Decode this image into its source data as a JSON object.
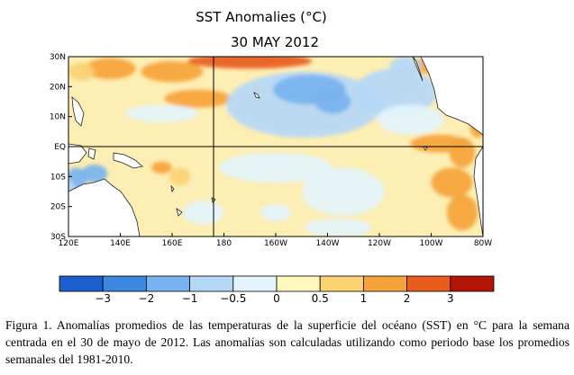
{
  "chart_data": {
    "type": "heatmap",
    "title": "SST Anomalies (°C)",
    "subtitle": "30 MAY 2012",
    "xlabel": "",
    "ylabel": "",
    "x_range_lon_east": [
      120,
      280
    ],
    "y_range_lat": [
      -30,
      30
    ],
    "x_ticks": [
      {
        "lon": 120,
        "label": "120E"
      },
      {
        "lon": 140,
        "label": "140E"
      },
      {
        "lon": 160,
        "label": "160E"
      },
      {
        "lon": 180,
        "label": "180"
      },
      {
        "lon": 200,
        "label": "160W"
      },
      {
        "lon": 220,
        "label": "140W"
      },
      {
        "lon": 240,
        "label": "120W"
      },
      {
        "lon": 260,
        "label": "100W"
      },
      {
        "lon": 280,
        "label": "80W"
      }
    ],
    "y_ticks": [
      {
        "lat": 30,
        "label": "30N"
      },
      {
        "lat": 20,
        "label": "20N"
      },
      {
        "lat": 10,
        "label": "10N"
      },
      {
        "lat": 0,
        "label": "EQ"
      },
      {
        "lat": -10,
        "label": "10S"
      },
      {
        "lat": -20,
        "label": "20S"
      },
      {
        "lat": -30,
        "label": "30S"
      }
    ],
    "reference_lines": {
      "equator_lat": 0,
      "dateline_lon": 180
    },
    "colorbar": {
      "boundaries": [
        -3,
        -2,
        -1,
        -0.5,
        0,
        0.5,
        1,
        2,
        3
      ],
      "labels": [
        "−3",
        "−2",
        "−1",
        "−0.5",
        "0",
        "0.5",
        "1",
        "2",
        "3"
      ],
      "colors": [
        "#1a5fcd",
        "#3a86e0",
        "#78b3ef",
        "#b5d8f7",
        "#e4f4fb",
        "#fff7bd",
        "#fbd373",
        "#f6a33b",
        "#e85c1d",
        "#b21508"
      ]
    },
    "ocean_base_color": "#fdeeb3",
    "land_color": "#ffffff",
    "anomaly_regions": [
      {
        "lon": 136,
        "lat": 26,
        "rx": 10,
        "ry": 3.5,
        "value": 1.2
      },
      {
        "lon": 160,
        "lat": 25,
        "rx": 12,
        "ry": 3.5,
        "value": 1.4
      },
      {
        "lon": 190,
        "lat": 28.5,
        "rx": 24,
        "ry": 2.5,
        "value": 2.0
      },
      {
        "lon": 262,
        "lat": 27,
        "rx": 9,
        "ry": 3,
        "value": 1.5
      },
      {
        "lon": 170,
        "lat": 16,
        "rx": 13,
        "ry": 3,
        "value": 1.1
      },
      {
        "lon": 125,
        "lat": 25,
        "rx": 5,
        "ry": 3,
        "value": 0.7
      },
      {
        "lon": 156,
        "lat": 11,
        "rx": 14,
        "ry": 3,
        "value": -0.3
      },
      {
        "lon": 211,
        "lat": 14,
        "rx": 30,
        "ry": 11,
        "value": -0.7
      },
      {
        "lon": 213,
        "lat": 19,
        "rx": 14,
        "ry": 5,
        "value": -1.4
      },
      {
        "lon": 222,
        "lat": 15,
        "rx": 7,
        "ry": 4,
        "value": -1.2
      },
      {
        "lon": 246,
        "lat": 18,
        "rx": 16,
        "ry": 8,
        "value": -0.7
      },
      {
        "lon": 252,
        "lat": 9,
        "rx": 13,
        "ry": 5,
        "value": -0.4
      },
      {
        "lon": 250,
        "lat": 27,
        "rx": 6,
        "ry": 3,
        "value": -0.6
      },
      {
        "lon": 263,
        "lat": 1,
        "rx": 11,
        "ry": 3,
        "value": 1.8
      },
      {
        "lon": 272,
        "lat": -2,
        "rx": 5,
        "ry": 5,
        "value": 1.6
      },
      {
        "lon": 268,
        "lat": -12,
        "rx": 8,
        "ry": 5,
        "value": 1.0
      },
      {
        "lon": 272,
        "lat": -22,
        "rx": 6,
        "ry": 6,
        "value": 1.8
      },
      {
        "lon": 278,
        "lat": 6,
        "rx": 3,
        "ry": 3,
        "value": 1.1
      },
      {
        "lon": 156,
        "lat": -7,
        "rx": 4,
        "ry": 2,
        "value": 1.3
      },
      {
        "lon": 163,
        "lat": -10,
        "rx": 4,
        "ry": 3,
        "value": 0.9
      },
      {
        "lon": 123,
        "lat": -11,
        "rx": 4,
        "ry": 4,
        "value": -1.6
      },
      {
        "lon": 130,
        "lat": -9,
        "rx": 5,
        "ry": 3,
        "value": -1.1
      },
      {
        "lon": 120,
        "lat": -17,
        "rx": 3,
        "ry": 6,
        "value": -0.7
      },
      {
        "lon": 200,
        "lat": -7,
        "rx": 22,
        "ry": 5,
        "value": -0.3
      },
      {
        "lon": 226,
        "lat": -15,
        "rx": 16,
        "ry": 8,
        "value": -0.4
      },
      {
        "lon": 172,
        "lat": -22,
        "rx": 8,
        "ry": 4,
        "value": -0.4
      },
      {
        "lon": 200,
        "lat": -22,
        "rx": 6,
        "ry": 3,
        "value": -0.4
      },
      {
        "lon": 224,
        "lat": -27,
        "rx": 13,
        "ry": 3,
        "value": -0.4
      }
    ]
  },
  "caption": {
    "text": "Figura 1. Anomalías promedios de las temperaturas de la superficie del océano (SST) en °C para la semana centrada en el 30 de mayo de 2012. Las anomalías son calculadas utilizando como periodo base los promedios semanales del 1981-2010."
  }
}
